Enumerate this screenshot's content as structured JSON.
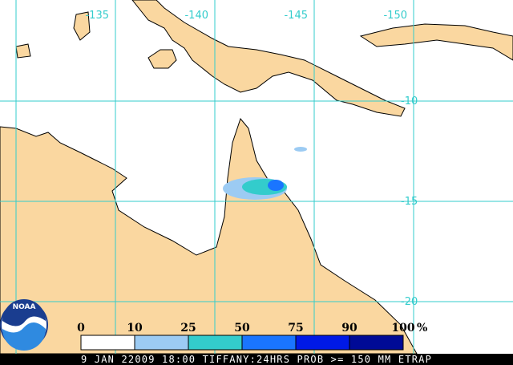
{
  "map": {
    "lon_labels": [
      "-135",
      "-140",
      "-145",
      "-150"
    ],
    "lat_labels": [
      "-10",
      "-15",
      "-20"
    ]
  },
  "legend": {
    "ticks": [
      "0",
      "10",
      "25",
      "50",
      "75",
      "90",
      "100"
    ],
    "unit": "%",
    "colors": [
      "#ffffff",
      "#9ccbf3",
      "#33cccc",
      "#1a75ff",
      "#0019e6",
      "#000a96"
    ]
  },
  "logo": {
    "text": "NOAA"
  },
  "footer": {
    "caption": "9 JAN 22009 18:00 TIFFANY:24HRS PROB >= 150 MM ETRAP"
  }
}
